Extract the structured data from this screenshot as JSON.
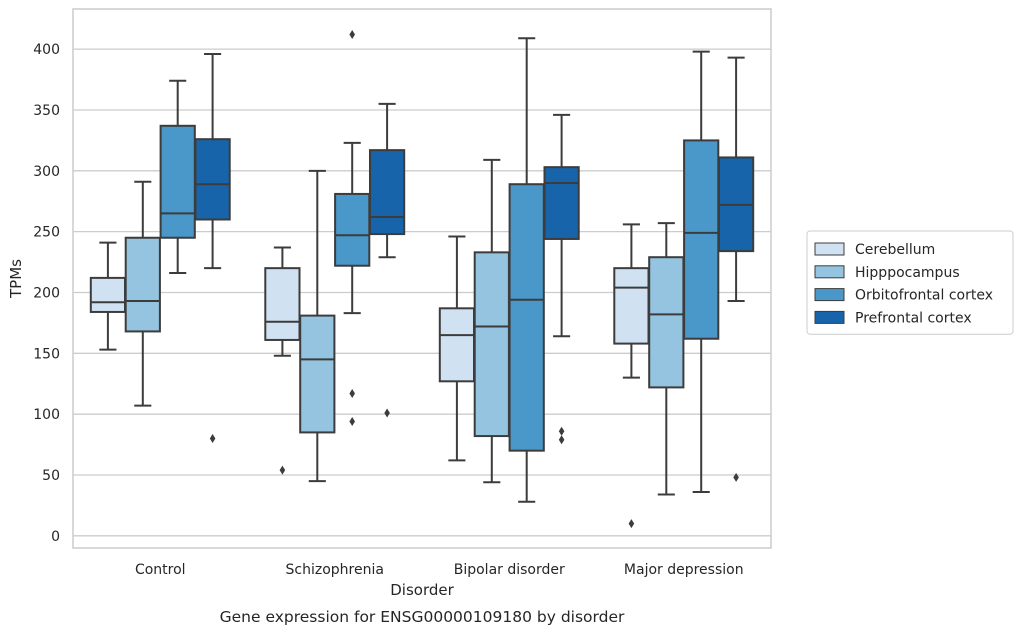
{
  "chart_data": {
    "type": "box",
    "caption": "Gene expression for ENSG00000109180 by disorder",
    "xlabel": "Disorder",
    "ylabel": "TPMs",
    "ylim": [
      -10,
      433
    ],
    "yticks": [
      0,
      50,
      100,
      150,
      200,
      250,
      300,
      350,
      400
    ],
    "grid": "horizontal",
    "legend_position": "right",
    "categories": [
      "Control",
      "Schizophrenia",
      "Bipolar disorder",
      "Major depression"
    ],
    "series": [
      {
        "name": "Cerebellum",
        "color": "#d0e1f2",
        "boxes": [
          {
            "whislo": 153,
            "q1": 184,
            "med": 192,
            "q3": 212,
            "whishi": 241,
            "fliers": []
          },
          {
            "whislo": 148,
            "q1": 161,
            "med": 176,
            "q3": 220,
            "whishi": 237,
            "fliers": [
              54
            ]
          },
          {
            "whislo": 62,
            "q1": 127,
            "med": 165,
            "q3": 187,
            "whishi": 246,
            "fliers": []
          },
          {
            "whislo": 130,
            "q1": 158,
            "med": 204,
            "q3": 220,
            "whishi": 256,
            "fliers": [
              10
            ]
          }
        ]
      },
      {
        "name": "Hipppocampus",
        "color": "#94c4df",
        "boxes": [
          {
            "whislo": 107,
            "q1": 168,
            "med": 193,
            "q3": 245,
            "whishi": 291,
            "fliers": []
          },
          {
            "whislo": 45,
            "q1": 85,
            "med": 145,
            "q3": 181,
            "whishi": 300,
            "fliers": []
          },
          {
            "whislo": 44,
            "q1": 82,
            "med": 172,
            "q3": 233,
            "whishi": 309,
            "fliers": []
          },
          {
            "whislo": 34,
            "q1": 122,
            "med": 182,
            "q3": 229,
            "whishi": 257,
            "fliers": []
          }
        ]
      },
      {
        "name": "Orbitofrontal cortex",
        "color": "#4a98c9",
        "boxes": [
          {
            "whislo": 216,
            "q1": 245,
            "med": 265,
            "q3": 337,
            "whishi": 374,
            "fliers": []
          },
          {
            "whislo": 183,
            "q1": 222,
            "med": 247,
            "q3": 281,
            "whishi": 323,
            "fliers": [
              412,
              117,
              94
            ]
          },
          {
            "whislo": 28,
            "q1": 70,
            "med": 194,
            "q3": 289,
            "whishi": 409,
            "fliers": []
          },
          {
            "whislo": 36,
            "q1": 162,
            "med": 249,
            "q3": 325,
            "whishi": 398,
            "fliers": []
          }
        ]
      },
      {
        "name": "Prefrontal cortex",
        "color": "#1764ab",
        "boxes": [
          {
            "whislo": 220,
            "q1": 260,
            "med": 289,
            "q3": 326,
            "whishi": 396,
            "fliers": [
              80
            ]
          },
          {
            "whislo": 229,
            "q1": 248,
            "med": 262,
            "q3": 317,
            "whishi": 355,
            "fliers": [
              101
            ]
          },
          {
            "whislo": 164,
            "q1": 244,
            "med": 290,
            "q3": 303,
            "whishi": 346,
            "fliers": [
              86,
              79
            ]
          },
          {
            "whislo": 193,
            "q1": 234,
            "med": 272,
            "q3": 311,
            "whishi": 393,
            "fliers": [
              48
            ]
          }
        ]
      }
    ]
  }
}
